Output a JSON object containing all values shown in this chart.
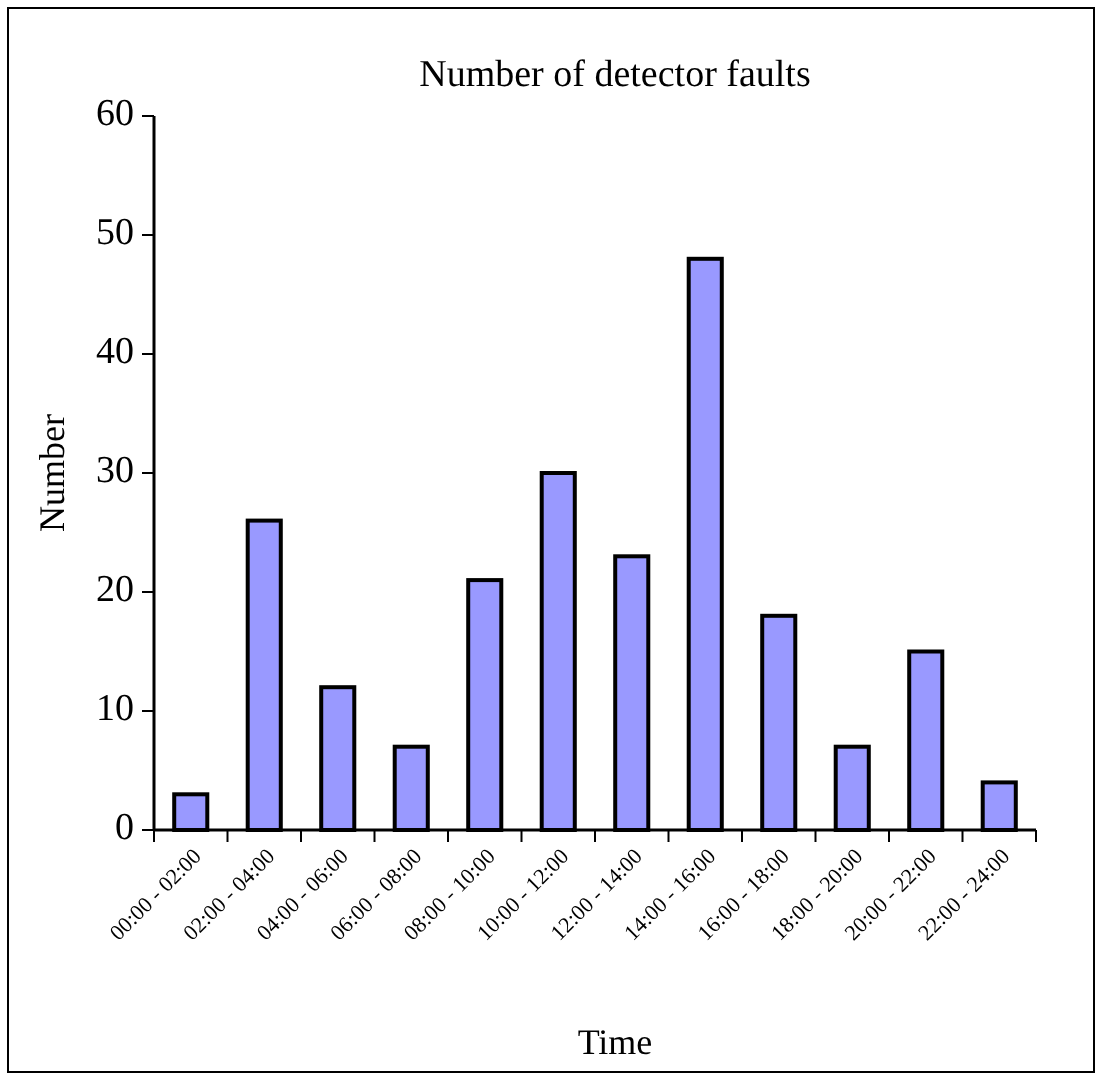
{
  "chart_data": {
    "type": "bar",
    "title": "Number of detector faults",
    "xlabel": "Time",
    "ylabel": "Number",
    "categories": [
      "00:00 - 02:00",
      "02:00 - 04:00",
      "04:00 - 06:00",
      "06:00 - 08:00",
      "08:00 - 10:00",
      "10:00 - 12:00",
      "12:00 - 14:00",
      "14:00 - 16:00",
      "16:00 - 18:00",
      "18:00 - 20:00",
      "20:00 - 22:00",
      "22:00 - 24:00"
    ],
    "values": [
      3,
      26,
      12,
      7,
      21,
      30,
      23,
      48,
      18,
      7,
      15,
      4
    ],
    "color": "#9999ff",
    "ylim": [
      0,
      60
    ],
    "yticks": [
      0,
      10,
      20,
      30,
      40,
      50,
      60
    ],
    "grid": false
  }
}
